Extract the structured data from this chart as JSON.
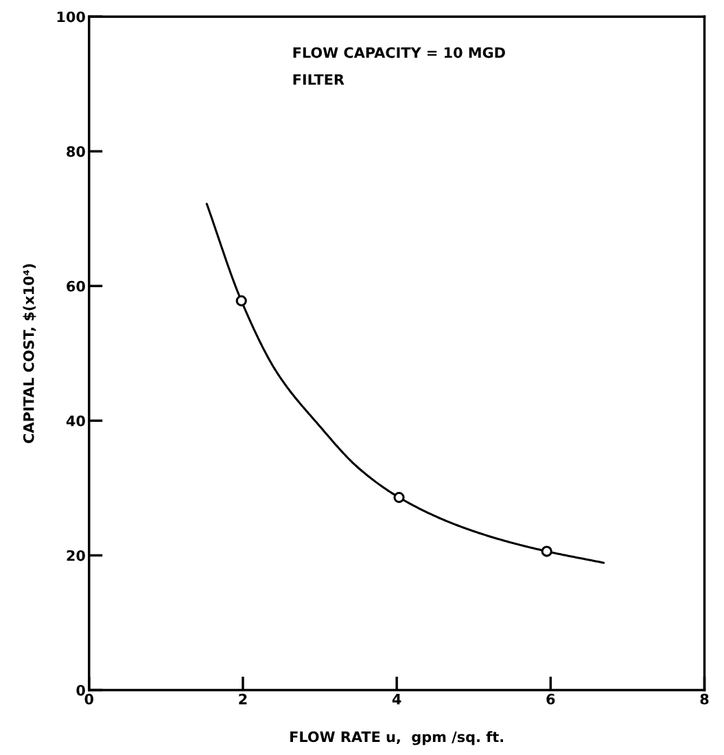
{
  "chart_data": {
    "type": "line",
    "xlabel": "FLOW RATE u,  gpm /sq. ft.",
    "ylabel": "CAPITAL COST, $(x10⁴)",
    "annotations": [
      "FLOW CAPACITY = 10 MGD",
      "FILTER"
    ],
    "xlim": [
      0,
      8
    ],
    "xticks": [
      0,
      2,
      4,
      6,
      8
    ],
    "ylim": [
      0,
      100
    ],
    "yticks": [
      0,
      20,
      40,
      60,
      80,
      100
    ],
    "grid": false,
    "legend": false,
    "series": [
      {
        "color": "#000000",
        "marker": "none",
        "x": [
          1.53,
          1.98,
          2.44,
          2.99,
          3.5,
          4.03,
          4.69,
          5.33,
          5.95,
          6.69
        ],
        "values": [
          72.2,
          57.8,
          47.2,
          39.3,
          33.0,
          28.6,
          24.9,
          22.4,
          20.6,
          18.9
        ]
      },
      {
        "type": "scatter",
        "color": "#000000",
        "marker": "circle",
        "x": [
          1.98,
          4.03,
          5.95
        ],
        "values": [
          57.8,
          28.6,
          20.6
        ]
      }
    ]
  }
}
